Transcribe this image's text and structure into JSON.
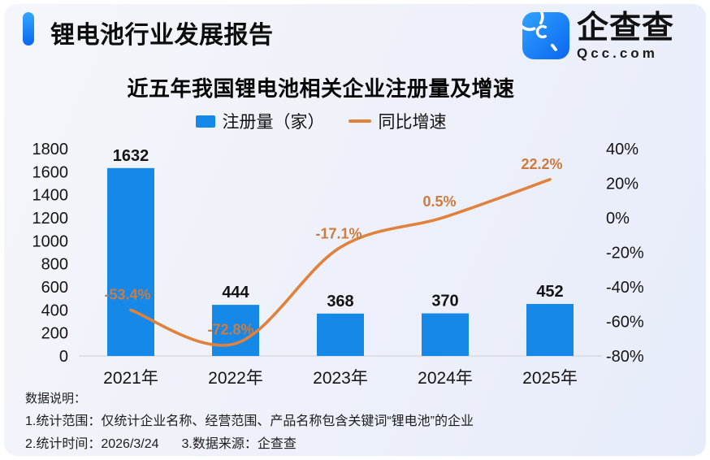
{
  "header": {
    "title": "锂电池行业发展报告",
    "logo": {
      "brand": "企查查",
      "domain": "Qcc.com"
    }
  },
  "chart_data": {
    "type": "bar",
    "title": "近五年我国锂电池相关企业注册量及增速",
    "legend_position": "top",
    "grid": false,
    "legend": [
      {
        "label": "注册量（家）",
        "type": "bar",
        "color": "#1588e8"
      },
      {
        "label": "同比增速",
        "type": "line",
        "color": "#e0813c"
      }
    ],
    "categories": [
      "2021年",
      "2022年",
      "2023年",
      "2024年",
      "2025年"
    ],
    "series": [
      {
        "name": "注册量（家）",
        "type": "bar",
        "axis": "left",
        "values": [
          1632,
          444,
          368,
          370,
          452
        ],
        "labels": [
          "1632",
          "444",
          "368",
          "370",
          "452"
        ]
      },
      {
        "name": "同比增速",
        "type": "line",
        "axis": "right",
        "values": [
          -53.4,
          -72.8,
          -17.1,
          0.5,
          22.2
        ],
        "labels": [
          "-53.4%",
          "-72.8%",
          "-17.1%",
          "0.5%",
          "22.2%"
        ]
      }
    ],
    "left_axis": {
      "min": 0,
      "max": 1800,
      "step": 200,
      "ticks": [
        "1800",
        "1600",
        "1400",
        "1200",
        "1000",
        "800",
        "600",
        "400",
        "200",
        "0"
      ]
    },
    "right_axis": {
      "min": -80,
      "max": 40,
      "step": 20,
      "ticks": [
        "40%",
        "20%",
        "0%",
        "-20%",
        "-40%",
        "-60%",
        "-80%"
      ]
    }
  },
  "colors": {
    "bar": "#1588e8",
    "line": "#e0813c",
    "line_label": "#cd7b3e",
    "axis_text": "#141414",
    "baseline": "#d8dade"
  },
  "footer": {
    "heading": "数据说明：",
    "note1": "1.统计范围：仅统计企业名称、经营范围、产品名称包含关键词“锂电池”的企业",
    "note2": "2.统计时间：2026/3/24",
    "note3": "3.数据来源：企查查"
  }
}
